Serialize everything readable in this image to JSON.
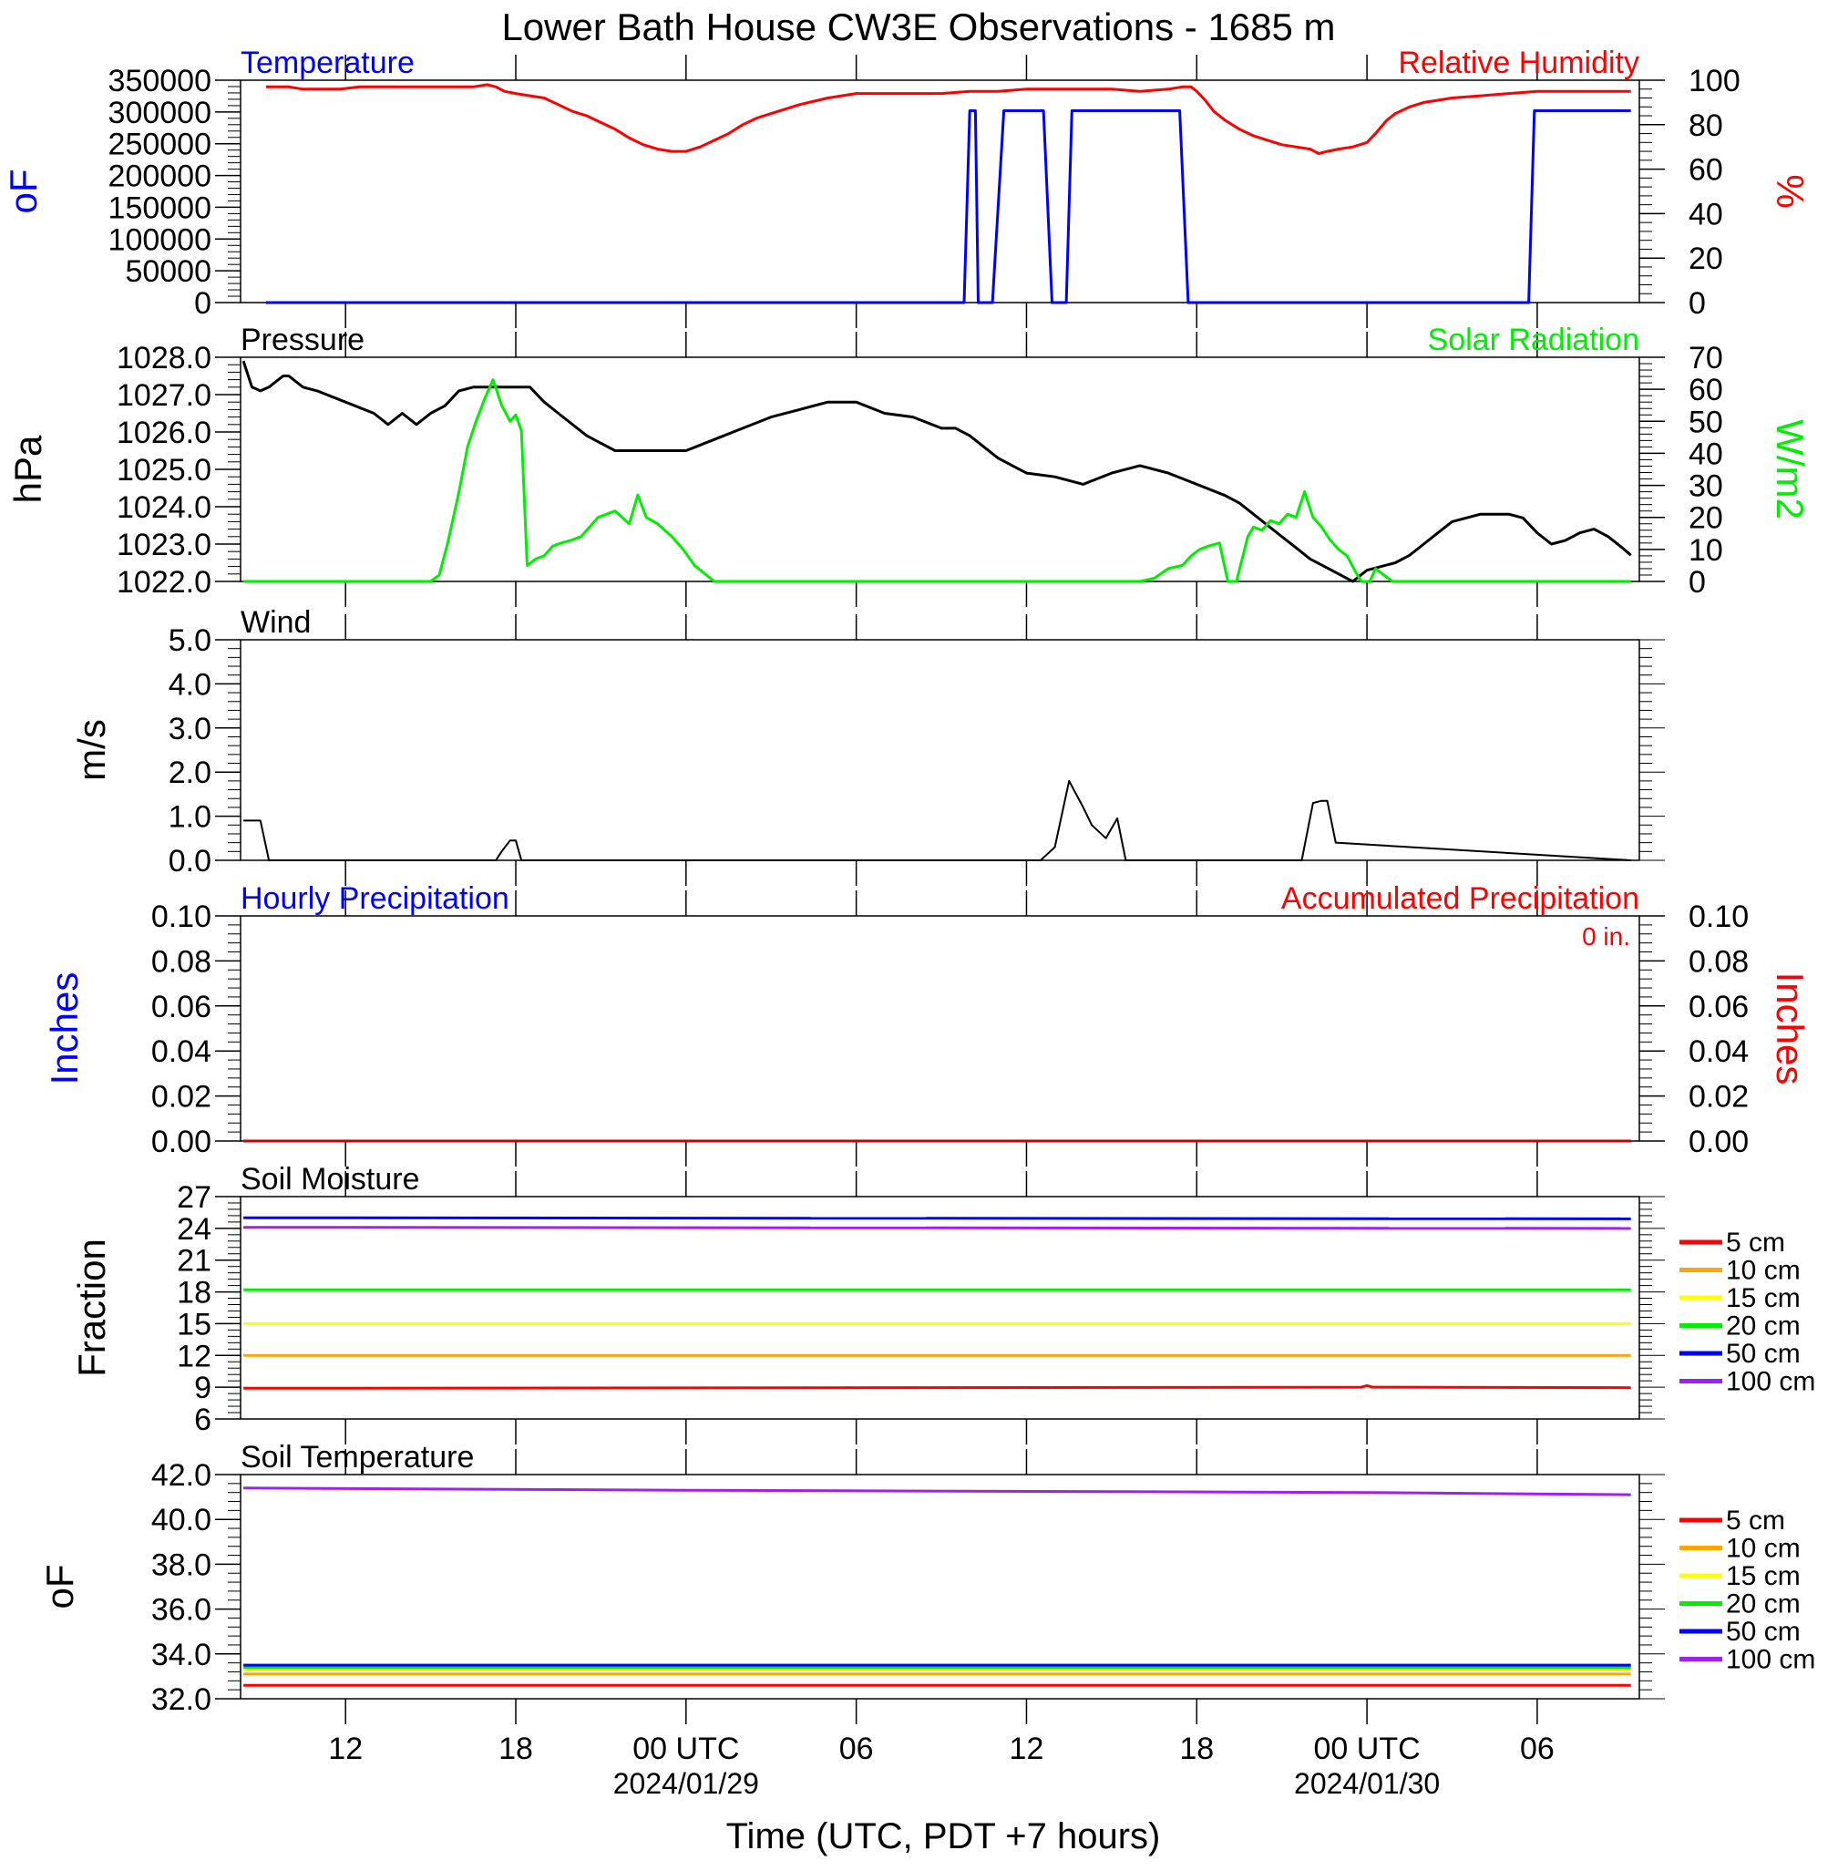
{
  "title": "Lower Bath House CW3E Observations - 1685 m",
  "x_axis": {
    "title": "Time (UTC, PDT +7 hours)",
    "ticks": [
      {
        "h": 12,
        "label": "12",
        "sub": ""
      },
      {
        "h": 18,
        "label": "18",
        "sub": ""
      },
      {
        "h": 24,
        "label": "00 UTC",
        "sub": "2024/01/29"
      },
      {
        "h": 30,
        "label": "06",
        "sub": ""
      },
      {
        "h": 36,
        "label": "12",
        "sub": ""
      },
      {
        "h": 42,
        "label": "18",
        "sub": ""
      },
      {
        "h": 48,
        "label": "00 UTC",
        "sub": "2024/01/30"
      },
      {
        "h": 54,
        "label": "06",
        "sub": ""
      }
    ],
    "range_hours": [
      8.3,
      57.6
    ]
  },
  "chart_data": [
    {
      "type": "line",
      "panel": "temperature-humidity",
      "left_title": "Temperature",
      "right_title": "Relative Humidity",
      "left_ylabel": "oF",
      "right_ylabel": "%",
      "left_ylim": [
        0,
        350000
      ],
      "right_ylim": [
        0,
        100
      ],
      "left_ticks": [
        "0",
        "50000",
        "100000",
        "150000",
        "200000",
        "250000",
        "300000",
        "350000"
      ],
      "right_ticks": [
        "0",
        "20",
        "40",
        "60",
        "80",
        "100"
      ],
      "colors": {
        "left": "#0000ff",
        "right": "#ff0000"
      },
      "series": [
        {
          "axis": "left",
          "color": "#0000ff",
          "x": [
            9.2,
            33.8,
            34.0,
            34.2,
            34.3,
            34.8,
            35.2,
            36.6,
            36.9,
            37.4,
            37.6,
            41.4,
            41.7,
            53.7,
            53.9,
            57.3
          ],
          "y": [
            0,
            0,
            302000,
            302000,
            0,
            0,
            302000,
            302000,
            0,
            0,
            302000,
            302000,
            0,
            0,
            302000,
            302000
          ]
        },
        {
          "axis": "right",
          "color": "#ff0000",
          "x": [
            9.2,
            10.0,
            10.5,
            11.0,
            11.8,
            12.5,
            13.5,
            15.0,
            16.5,
            17.0,
            17.3,
            17.6,
            18.0,
            18.5,
            19.0,
            19.5,
            20.0,
            20.5,
            21.0,
            21.5,
            22.0,
            22.5,
            23.0,
            23.5,
            24.0,
            24.5,
            25.0,
            25.5,
            26.0,
            26.5,
            27.0,
            28.0,
            29.0,
            30.0,
            31.0,
            32.0,
            33.0,
            34.0,
            35.0,
            36.0,
            37.0,
            38.0,
            39.0,
            40.0,
            41.0,
            41.5,
            41.8,
            42.0,
            42.3,
            42.6,
            43.0,
            43.5,
            44.0,
            44.5,
            45.0,
            45.5,
            46.0,
            46.3,
            46.6,
            47.0,
            47.5,
            48.0,
            48.3,
            48.7,
            49.0,
            49.5,
            50.0,
            50.5,
            51.0,
            52.0,
            53.0,
            54.0,
            55.0,
            56.0,
            57.3
          ],
          "y": [
            97,
            97,
            96,
            96,
            96,
            97,
            97,
            97,
            97,
            98,
            97,
            95,
            94,
            93,
            92,
            89,
            86,
            84,
            81,
            78,
            74,
            71,
            69,
            68,
            68,
            70,
            73,
            76,
            80,
            83,
            85,
            89,
            92,
            94,
            94,
            94,
            94,
            95,
            95,
            96,
            96,
            96,
            96,
            95,
            96,
            97,
            97,
            95,
            91,
            86,
            82,
            78,
            75,
            73,
            71,
            70,
            69,
            67,
            68,
            69,
            70,
            72,
            76,
            82,
            85,
            88,
            90,
            91,
            92,
            93,
            94,
            95,
            95,
            95,
            95
          ]
        }
      ]
    },
    {
      "type": "line",
      "panel": "pressure-solar",
      "left_title": "Pressure",
      "right_title": "Solar Radiation",
      "left_ylabel": "hPa",
      "right_ylabel": "W/m2",
      "left_ylim": [
        1022.0,
        1028.0
      ],
      "right_ylim": [
        0,
        70
      ],
      "left_ticks": [
        "1022.0",
        "1023.0",
        "1024.0",
        "1025.0",
        "1026.0",
        "1027.0",
        "1028.0"
      ],
      "right_ticks": [
        "0",
        "10",
        "20",
        "30",
        "40",
        "50",
        "60",
        "70"
      ],
      "colors": {
        "left": "#000000",
        "right": "#00ee00"
      },
      "series": [
        {
          "axis": "left",
          "color": "#000000",
          "x": [
            8.4,
            8.7,
            9.0,
            9.3,
            9.8,
            10.0,
            10.5,
            11.0,
            12.0,
            13.0,
            13.5,
            14.0,
            14.5,
            15.0,
            15.5,
            16.0,
            16.5,
            17.0,
            17.5,
            18.0,
            18.5,
            19.0,
            19.5,
            20.0,
            20.5,
            21.0,
            21.5,
            22.0,
            23.0,
            24.0,
            25.0,
            26.0,
            27.0,
            28.0,
            29.0,
            30.0,
            31.0,
            32.0,
            33.0,
            33.5,
            34.0,
            34.5,
            35.0,
            35.5,
            36.0,
            37.0,
            38.0,
            39.0,
            40.0,
            41.0,
            42.0,
            43.0,
            43.5,
            44.0,
            44.5,
            45.0,
            45.5,
            46.0,
            46.5,
            47.0,
            47.5,
            48.0,
            49.0,
            49.5,
            50.0,
            50.5,
            51.0,
            52.0,
            53.0,
            53.5,
            54.0,
            54.5,
            55.0,
            55.5,
            56.0,
            56.5,
            57.0,
            57.3
          ],
          "y": [
            1027.9,
            1027.2,
            1027.1,
            1027.2,
            1027.5,
            1027.5,
            1027.2,
            1027.1,
            1026.8,
            1026.5,
            1026.2,
            1026.5,
            1026.2,
            1026.5,
            1026.7,
            1027.1,
            1027.2,
            1027.2,
            1027.2,
            1027.2,
            1027.2,
            1026.8,
            1026.5,
            1026.2,
            1025.9,
            1025.7,
            1025.5,
            1025.5,
            1025.5,
            1025.5,
            1025.8,
            1026.1,
            1026.4,
            1026.6,
            1026.8,
            1026.8,
            1026.5,
            1026.4,
            1026.1,
            1026.1,
            1025.9,
            1025.6,
            1025.3,
            1025.1,
            1024.9,
            1024.8,
            1024.6,
            1024.9,
            1025.1,
            1024.9,
            1024.6,
            1024.3,
            1024.1,
            1023.8,
            1023.5,
            1023.2,
            1022.9,
            1022.6,
            1022.4,
            1022.2,
            1022.0,
            1022.3,
            1022.5,
            1022.7,
            1023.0,
            1023.3,
            1023.6,
            1023.8,
            1023.8,
            1023.7,
            1023.3,
            1023.0,
            1023.1,
            1023.3,
            1023.4,
            1023.2,
            1022.9,
            1022.7
          ]
        },
        {
          "axis": "right",
          "color": "#00ee00",
          "x": [
            8.4,
            15.0,
            15.3,
            15.6,
            16.0,
            16.3,
            16.6,
            16.9,
            17.2,
            17.5,
            17.8,
            18.0,
            18.2,
            18.4,
            18.7,
            19.0,
            19.3,
            19.6,
            20.0,
            20.3,
            20.6,
            20.9,
            21.2,
            21.5,
            22.0,
            22.3,
            22.6,
            23.0,
            23.5,
            23.9,
            24.3,
            25.0,
            30.0,
            38.0,
            40.0,
            40.5,
            41.0,
            41.5,
            41.8,
            42.1,
            42.4,
            42.8,
            43.1,
            43.4,
            43.8,
            44.0,
            44.3,
            44.6,
            44.9,
            45.2,
            45.5,
            45.8,
            46.1,
            46.4,
            46.7,
            47.0,
            47.3,
            47.6,
            47.8,
            48.1,
            48.3,
            48.6,
            48.9,
            49.2,
            57.3
          ],
          "y": [
            0,
            0,
            2,
            12,
            28,
            42,
            50,
            57,
            63,
            55,
            50,
            52,
            47,
            5,
            7,
            8,
            11,
            12,
            13,
            14,
            17,
            20,
            21,
            22,
            18,
            27,
            20,
            18,
            14,
            10,
            5,
            0,
            0,
            0,
            0,
            1,
            4,
            5,
            8,
            10,
            11,
            12,
            0,
            0,
            14,
            17,
            16,
            19,
            18,
            21,
            20,
            28,
            20,
            17,
            13,
            10,
            8,
            3,
            0,
            0,
            4,
            2,
            0,
            0,
            0
          ]
        }
      ]
    },
    {
      "type": "line",
      "panel": "wind",
      "left_title": "Wind",
      "left_ylabel": "m/s",
      "left_ylim": [
        0,
        5.0
      ],
      "left_ticks": [
        "0.0",
        "1.0",
        "2.0",
        "3.0",
        "4.0",
        "5.0"
      ],
      "colors": {
        "left": "#000000"
      },
      "series": [
        {
          "axis": "left",
          "color": "#000000",
          "x": [
            8.4,
            8.7,
            9.0,
            9.3,
            17.3,
            17.5,
            17.8,
            18.0,
            18.2,
            36.5,
            37.0,
            37.5,
            38.0,
            38.3,
            38.8,
            39.2,
            39.5,
            45.3,
            45.7,
            46.1,
            46.4,
            46.6,
            46.9,
            57.3
          ],
          "y": [
            0.9,
            0.9,
            0.9,
            0,
            0,
            0.2,
            0.45,
            0.45,
            0,
            0,
            0.3,
            1.8,
            1.2,
            0.8,
            0.5,
            0.95,
            0,
            0,
            0,
            1.3,
            1.35,
            1.35,
            0.4,
            0
          ]
        }
      ]
    },
    {
      "type": "line",
      "panel": "precipitation",
      "left_title": "Hourly Precipitation",
      "right_title": "Accumulated Precipitation",
      "annotation": "0 in.",
      "left_ylabel": "Inches",
      "right_ylabel": "Inches",
      "left_ylim": [
        0,
        0.1
      ],
      "right_ylim": [
        0,
        0.1
      ],
      "left_ticks": [
        "0.00",
        "0.02",
        "0.04",
        "0.06",
        "0.08",
        "0.10"
      ],
      "right_ticks": [
        "0.00",
        "0.02",
        "0.04",
        "0.06",
        "0.08",
        "0.10"
      ],
      "colors": {
        "left": "#0000ff",
        "right": "#ff0000"
      },
      "series": [
        {
          "axis": "left",
          "color": "#0000ff",
          "x": [
            8.4,
            57.3
          ],
          "y": [
            0,
            0
          ]
        },
        {
          "axis": "right",
          "color": "#cc0000",
          "x": [
            8.4,
            57.3
          ],
          "y": [
            0,
            0
          ]
        }
      ]
    },
    {
      "type": "line",
      "panel": "soil-moisture",
      "left_title": "Soil Moisture",
      "left_ylabel": "Fraction",
      "left_ylim": [
        6,
        27
      ],
      "left_ticks": [
        "6",
        "9",
        "12",
        "15",
        "18",
        "21",
        "24",
        "27"
      ],
      "colors": {
        "left": "#000000"
      },
      "legend": [
        "5 cm",
        "10 cm",
        "15 cm",
        "20 cm",
        "50 cm",
        "100 cm"
      ],
      "series": [
        {
          "name": "5 cm",
          "color": "#ff0000",
          "x": [
            8.4,
            47.8,
            48.0,
            48.2,
            57.3
          ],
          "y": [
            8.9,
            9.0,
            9.15,
            9.0,
            8.95
          ]
        },
        {
          "name": "10 cm",
          "color": "#ffa500",
          "x": [
            8.4,
            57.3
          ],
          "y": [
            12.0,
            12.0
          ]
        },
        {
          "name": "15 cm",
          "color": "#ffff00",
          "x": [
            8.4,
            57.3
          ],
          "y": [
            15.0,
            15.0
          ]
        },
        {
          "name": "20 cm",
          "color": "#00ee00",
          "x": [
            8.4,
            57.3
          ],
          "y": [
            18.2,
            18.2
          ]
        },
        {
          "name": "50 cm",
          "color": "#0000ff",
          "x": [
            8.4,
            57.3
          ],
          "y": [
            25.0,
            24.9
          ]
        },
        {
          "name": "100 cm",
          "color": "#a020f0",
          "x": [
            8.4,
            57.3
          ],
          "y": [
            24.1,
            24.0
          ]
        }
      ]
    },
    {
      "type": "line",
      "panel": "soil-temperature",
      "left_title": "Soil Temperature",
      "left_ylabel": "oF",
      "left_ylim": [
        32.0,
        42.0
      ],
      "left_ticks": [
        "32.0",
        "34.0",
        "36.0",
        "38.0",
        "40.0",
        "42.0"
      ],
      "colors": {
        "left": "#000000"
      },
      "legend": [
        "5 cm",
        "10 cm",
        "15 cm",
        "20 cm",
        "50 cm",
        "100 cm"
      ],
      "series": [
        {
          "name": "5 cm",
          "color": "#ff0000",
          "x": [
            8.4,
            57.3
          ],
          "y": [
            32.6,
            32.6
          ]
        },
        {
          "name": "10 cm",
          "color": "#ffa500",
          "x": [
            8.4,
            57.3
          ],
          "y": [
            33.1,
            33.1
          ]
        },
        {
          "name": "15 cm",
          "color": "#ffff00",
          "x": [
            8.4,
            57.3
          ],
          "y": [
            33.3,
            33.3
          ]
        },
        {
          "name": "20 cm",
          "color": "#00ee00",
          "x": [
            8.4,
            57.3
          ],
          "y": [
            33.4,
            33.4
          ]
        },
        {
          "name": "50 cm",
          "color": "#0000ff",
          "x": [
            8.4,
            57.3
          ],
          "y": [
            33.5,
            33.5
          ]
        },
        {
          "name": "100 cm",
          "color": "#a020f0",
          "x": [
            8.4,
            24.0,
            48.0,
            57.3
          ],
          "y": [
            41.4,
            41.3,
            41.2,
            41.1
          ]
        }
      ]
    }
  ]
}
